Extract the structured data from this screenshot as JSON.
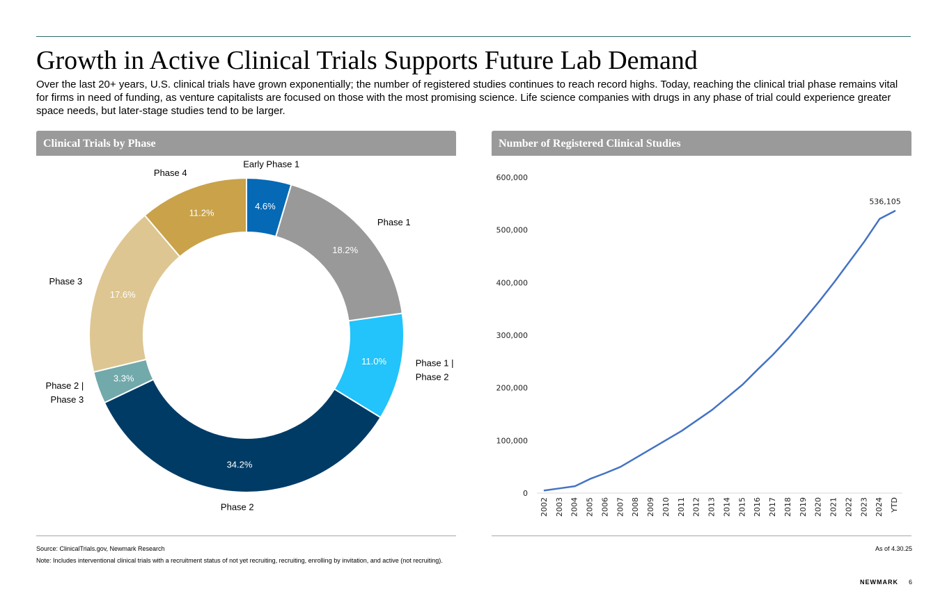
{
  "title": "Growth in Active Clinical Trials Supports Future Lab Demand",
  "intro": "Over the last 20+ years, U.S. clinical trials have grown exponentially; the number of registered studies continues to reach record highs. Today, reaching the clinical trial phase remains vital for firms in need of funding, as venture capitalists are focused on those with the most promising science. Life science companies with drugs in any phase of trial could experience greater space needs, but later-stage studies tend to be larger.",
  "left_panel": {
    "title": "Clinical Trials by Phase"
  },
  "right_panel": {
    "title": "Number of Registered Clinical Studies"
  },
  "footer": {
    "source": "Source: ClinicalTrials.gov, Newmark Research",
    "note": "Note: Includes interventional clinical trials with a recruitment status of not yet recruiting, recruiting, enrolling by invitation, and active (not recruiting).",
    "as_of": "As of 4.30.25",
    "brand": "NEWMARK",
    "page_number": "6"
  },
  "chart_data": [
    {
      "type": "pie",
      "variant": "donut",
      "title": "Clinical Trials by Phase",
      "slices": [
        {
          "label": "Early Phase 1",
          "value": 4.6,
          "value_label": "4.6%",
          "color": "#0569b5",
          "label_color": "#ffffff"
        },
        {
          "label": "Phase 1",
          "value": 18.2,
          "value_label": "18.2%",
          "color": "#999999",
          "label_color": "#ffffff"
        },
        {
          "label": "Phase 1 | Phase 2",
          "label_lines": [
            "Phase 1 |",
            "Phase 2"
          ],
          "value": 11.0,
          "value_label": "11.0%",
          "color": "#23c3fb",
          "label_color": "#ffffff"
        },
        {
          "label": "Phase 2",
          "value": 34.2,
          "value_label": "34.2%",
          "color": "#003b66",
          "label_color": "#ffffff"
        },
        {
          "label": "Phase 2 | Phase 3",
          "label_lines": [
            "Phase 2 |",
            "Phase 3"
          ],
          "value": 3.3,
          "value_label": "3.3%",
          "color": "#72a9ab",
          "label_color": "#ffffff"
        },
        {
          "label": "Phase 3",
          "value": 17.6,
          "value_label": "17.6%",
          "color": "#dec692",
          "label_color": "#ffffff"
        },
        {
          "label": "Phase 4",
          "value": 11.2,
          "value_label": "11.2%",
          "color": "#c9a24a",
          "label_color": "#ffffff"
        }
      ]
    },
    {
      "type": "line",
      "title": "Number of Registered Clinical Studies",
      "xlabel": "",
      "ylabel": "",
      "ylim": [
        0,
        600000
      ],
      "yticks": [
        0,
        100000,
        200000,
        300000,
        400000,
        500000,
        600000
      ],
      "ytick_labels": [
        "0",
        "100,000",
        "200,000",
        "300,000",
        "400,000",
        "500,000",
        "600,000"
      ],
      "categories": [
        "2002",
        "2003",
        "2004",
        "2005",
        "2006",
        "2007",
        "2008",
        "2009",
        "2010",
        "2011",
        "2012",
        "2013",
        "2014",
        "2015",
        "2016",
        "2017",
        "2018",
        "2019",
        "2020",
        "2021",
        "2022",
        "2023",
        "2024",
        "YTD"
      ],
      "series": [
        {
          "name": "Registered Clinical Studies",
          "color": "#4472c4",
          "values": [
            5000,
            9000,
            13000,
            27000,
            38000,
            50000,
            67000,
            84000,
            101000,
            118000,
            138000,
            158000,
            182000,
            206000,
            235000,
            263000,
            294000,
            328000,
            363000,
            400000,
            439000,
            478000,
            521000,
            536105
          ]
        }
      ],
      "annotations": [
        {
          "category": "YTD",
          "text": "536,105"
        }
      ]
    }
  ]
}
